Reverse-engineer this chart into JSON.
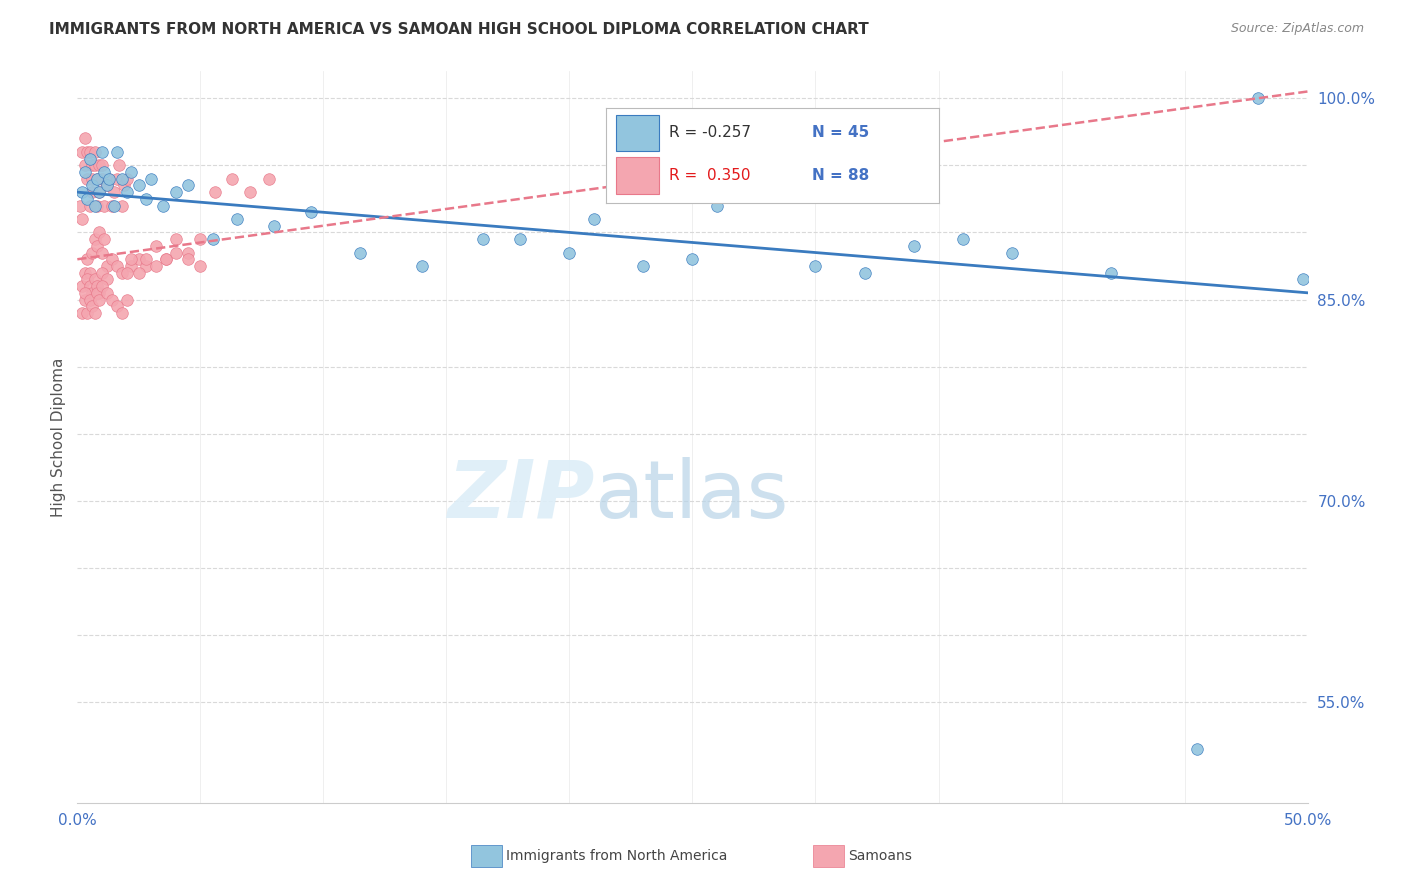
{
  "title": "IMMIGRANTS FROM NORTH AMERICA VS SAMOAN HIGH SCHOOL DIPLOMA CORRELATION CHART",
  "source": "Source: ZipAtlas.com",
  "ylabel": "High School Diploma",
  "xlim": [
    0.0,
    0.5
  ],
  "ylim": [
    0.475,
    1.02
  ],
  "xticks": [
    0.0,
    0.05,
    0.1,
    0.15,
    0.2,
    0.25,
    0.3,
    0.35,
    0.4,
    0.45,
    0.5
  ],
  "yticks_grid": [
    0.55,
    0.6,
    0.65,
    0.7,
    0.75,
    0.8,
    0.85,
    0.9,
    0.95,
    1.0
  ],
  "yticks_labels": [
    0.55,
    0.7,
    0.85,
    1.0
  ],
  "yticklabels": [
    "55.0%",
    "70.0%",
    "85.0%",
    "100.0%"
  ],
  "legend_r1": "-0.257",
  "legend_n1": "45",
  "legend_r2": "0.350",
  "legend_n2": "88",
  "color_blue": "#92c5de",
  "color_pink": "#f4a6b0",
  "color_blue_line": "#3a7bbf",
  "color_pink_line": "#e8788a",
  "color_grid": "#d9d9d9",
  "watermark_color": "#ddeef8",
  "blue_line_x0": 0.0,
  "blue_line_y0": 0.93,
  "blue_line_x1": 0.5,
  "blue_line_y1": 0.855,
  "pink_line_x0": 0.0,
  "pink_line_y0": 0.88,
  "pink_line_x1": 0.5,
  "pink_line_y1": 1.005,
  "blue_x": [
    0.002,
    0.003,
    0.004,
    0.005,
    0.006,
    0.007,
    0.008,
    0.009,
    0.01,
    0.011,
    0.012,
    0.013,
    0.015,
    0.016,
    0.018,
    0.02,
    0.022,
    0.025,
    0.028,
    0.03,
    0.035,
    0.04,
    0.045,
    0.055,
    0.065,
    0.08,
    0.095,
    0.115,
    0.14,
    0.165,
    0.2,
    0.23,
    0.26,
    0.3,
    0.34,
    0.38,
    0.42,
    0.455,
    0.48,
    0.498,
    0.18,
    0.21,
    0.25,
    0.32,
    0.36
  ],
  "blue_y": [
    0.93,
    0.945,
    0.925,
    0.955,
    0.935,
    0.92,
    0.94,
    0.93,
    0.96,
    0.945,
    0.935,
    0.94,
    0.92,
    0.96,
    0.94,
    0.93,
    0.945,
    0.935,
    0.925,
    0.94,
    0.92,
    0.93,
    0.935,
    0.895,
    0.91,
    0.905,
    0.915,
    0.885,
    0.875,
    0.895,
    0.885,
    0.875,
    0.92,
    0.875,
    0.89,
    0.885,
    0.87,
    0.515,
    1.0,
    0.865,
    0.895,
    0.91,
    0.88,
    0.87,
    0.895
  ],
  "pink_x": [
    0.001,
    0.002,
    0.002,
    0.003,
    0.003,
    0.004,
    0.004,
    0.005,
    0.005,
    0.006,
    0.006,
    0.006,
    0.007,
    0.007,
    0.008,
    0.008,
    0.009,
    0.009,
    0.01,
    0.01,
    0.011,
    0.012,
    0.013,
    0.014,
    0.015,
    0.016,
    0.017,
    0.018,
    0.019,
    0.02,
    0.022,
    0.025,
    0.028,
    0.032,
    0.036,
    0.04,
    0.045,
    0.05,
    0.056,
    0.063,
    0.07,
    0.078,
    0.003,
    0.004,
    0.005,
    0.006,
    0.007,
    0.008,
    0.009,
    0.01,
    0.011,
    0.012,
    0.014,
    0.016,
    0.018,
    0.02,
    0.022,
    0.025,
    0.028,
    0.032,
    0.036,
    0.04,
    0.045,
    0.05,
    0.002,
    0.003,
    0.004,
    0.005,
    0.006,
    0.007,
    0.008,
    0.009,
    0.01,
    0.012,
    0.002,
    0.003,
    0.004,
    0.005,
    0.006,
    0.007,
    0.008,
    0.009,
    0.01,
    0.012,
    0.014,
    0.016,
    0.018,
    0.02
  ],
  "pink_y": [
    0.92,
    0.91,
    0.96,
    0.97,
    0.95,
    0.94,
    0.96,
    0.92,
    0.96,
    0.94,
    0.95,
    0.93,
    0.95,
    0.96,
    0.94,
    0.92,
    0.93,
    0.95,
    0.94,
    0.95,
    0.92,
    0.935,
    0.94,
    0.92,
    0.93,
    0.94,
    0.95,
    0.92,
    0.935,
    0.94,
    0.875,
    0.88,
    0.875,
    0.89,
    0.88,
    0.895,
    0.885,
    0.895,
    0.93,
    0.94,
    0.93,
    0.94,
    0.87,
    0.88,
    0.87,
    0.885,
    0.895,
    0.89,
    0.9,
    0.885,
    0.895,
    0.875,
    0.88,
    0.875,
    0.87,
    0.87,
    0.88,
    0.87,
    0.88,
    0.875,
    0.88,
    0.885,
    0.88,
    0.875,
    0.86,
    0.85,
    0.865,
    0.86,
    0.855,
    0.865,
    0.86,
    0.855,
    0.87,
    0.865,
    0.84,
    0.855,
    0.84,
    0.85,
    0.845,
    0.84,
    0.855,
    0.85,
    0.86,
    0.855,
    0.85,
    0.845,
    0.84,
    0.85
  ]
}
